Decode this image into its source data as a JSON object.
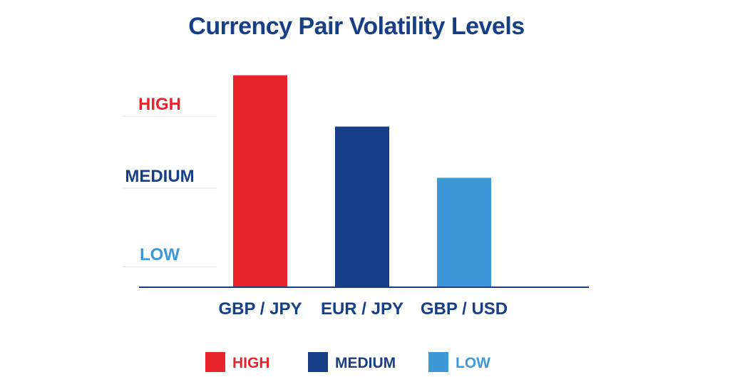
{
  "chart_data": {
    "type": "bar",
    "title": "Currency Pair Volatility Levels",
    "categories": [
      "GBP / JPY",
      "EUR / JPY",
      "GBP / USD"
    ],
    "values": [
      3.1,
      2.35,
      1.6
    ],
    "ylim": [
      0,
      3.2
    ],
    "y_levels": [
      {
        "label": "HIGH",
        "value": 2.5,
        "color": "#e8232b"
      },
      {
        "label": "MEDIUM",
        "value": 1.45,
        "color": "#173f86"
      },
      {
        "label": "LOW",
        "value": 0.3,
        "color": "#3d98d9"
      }
    ],
    "bar_colors": [
      "#e8232b",
      "#173f86",
      "#3d98d9"
    ],
    "legend": [
      {
        "label": "HIGH",
        "color": "#e8232b"
      },
      {
        "label": "MEDIUM",
        "color": "#173f86"
      },
      {
        "label": "LOW",
        "color": "#3d98d9"
      }
    ],
    "legend_position": "bottom",
    "grid": true,
    "title_color": "#173f86",
    "axis_color": "#173f86",
    "grid_color": "#e2e4e8"
  }
}
